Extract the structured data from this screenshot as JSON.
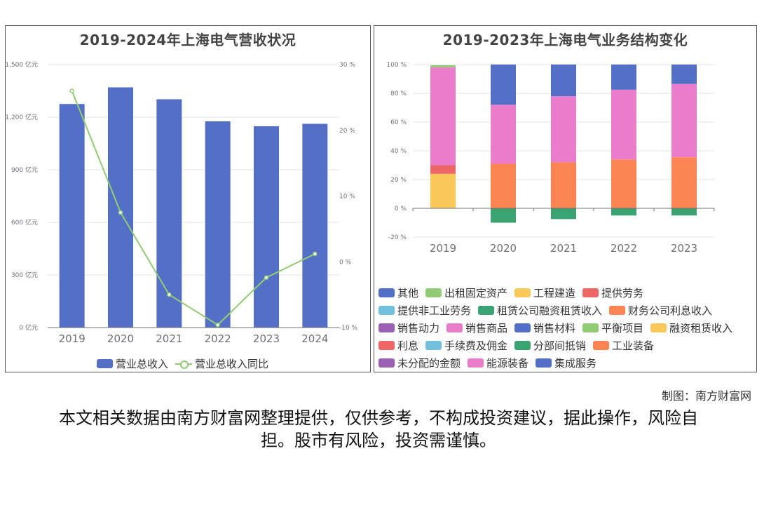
{
  "left_chart": {
    "title": "2019-2024年上海电气营收状况",
    "legend": {
      "bar": "营业总收入",
      "line": "营业总收入同比"
    }
  },
  "right_chart": {
    "title": "2019-2023年上海电气业务结构变化",
    "legend": [
      "其他",
      "出租固定资产",
      "工程建造",
      "提供劳务",
      "提供非工业劳务",
      "租赁公司融资租赁收入",
      "财务公司利息收入",
      "销售动力",
      "销售商品",
      "销售材料",
      "平衡项目",
      "融资租赁收入",
      "利息",
      "手续费及佣金",
      "分部间抵销",
      "工业装备",
      "未分配的金额",
      "能源装备",
      "集成服务"
    ]
  },
  "footer": {
    "credit": "制图：南方财富网",
    "disclaimer": "本文相关数据由南方财富网整理提供，仅供参考，不构成投资建议，据此操作，风险自担。股市有风险，投资需谨慎。"
  },
  "colors": {
    "blue": "#5470c6",
    "green": "#91cc75",
    "yellow": "#fac858",
    "red": "#ee6666",
    "cyan": "#73c0de",
    "dkgreen": "#3ba272",
    "orange": "#fc8452",
    "purple": "#9a60b4",
    "pink": "#ea7ccc"
  },
  "chart_data": [
    {
      "type": "bar",
      "categories": [
        "2019",
        "2020",
        "2021",
        "2022",
        "2023",
        "2024"
      ],
      "series": [
        {
          "name": "营业总收入",
          "type": "bar",
          "axis": "left",
          "values": [
            1275,
            1370,
            1302,
            1176,
            1148,
            1162
          ]
        },
        {
          "name": "营业总收入同比",
          "type": "line",
          "axis": "right",
          "values": [
            26,
            7.5,
            -5.0,
            -9.6,
            -2.4,
            1.2
          ]
        }
      ],
      "y_left": {
        "range": [
          0,
          1500
        ],
        "ticks": [
          "0 亿元",
          "300 亿元",
          "600 亿元",
          "900 亿元",
          "1,200 亿元",
          "1,500 亿元"
        ]
      },
      "y_right": {
        "range": [
          -10,
          30
        ],
        "ticks": [
          "-10 %",
          "0 %",
          "10 %",
          "20 %",
          "30 %"
        ]
      }
    },
    {
      "type": "bar",
      "stacked": true,
      "categories": [
        "2019",
        "2020",
        "2021",
        "2022",
        "2023"
      ],
      "series": [
        {
          "name": "融资租赁收入",
          "color": "yellow",
          "values": [
            24,
            0,
            0,
            0,
            0
          ]
        },
        {
          "name": "利息",
          "color": "red",
          "values": [
            6,
            0,
            0,
            0,
            0
          ]
        },
        {
          "name": "销售商品",
          "color": "pink",
          "values": [
            68,
            0,
            0,
            0,
            0
          ]
        },
        {
          "name": "平衡项目",
          "color": "green",
          "values": [
            1.5,
            0,
            0,
            0,
            0
          ]
        },
        {
          "name": "工业装备",
          "color": "orange",
          "values": [
            0,
            31,
            32,
            34,
            35.5
          ]
        },
        {
          "name": "能源装备",
          "color": "pink",
          "values": [
            0,
            41,
            46,
            48.5,
            51
          ]
        },
        {
          "name": "集成服务",
          "color": "blue",
          "values": [
            0,
            28,
            22,
            17.5,
            13.5
          ]
        },
        {
          "name": "分部间抵销",
          "color": "dkgreen",
          "values": [
            0,
            -10,
            -7.5,
            -5,
            -5
          ]
        }
      ],
      "ylim": [
        -20,
        100
      ],
      "y_ticks": [
        "-20 %",
        "0 %",
        "20 %",
        "40 %",
        "60 %",
        "80 %",
        "100 %"
      ]
    }
  ]
}
